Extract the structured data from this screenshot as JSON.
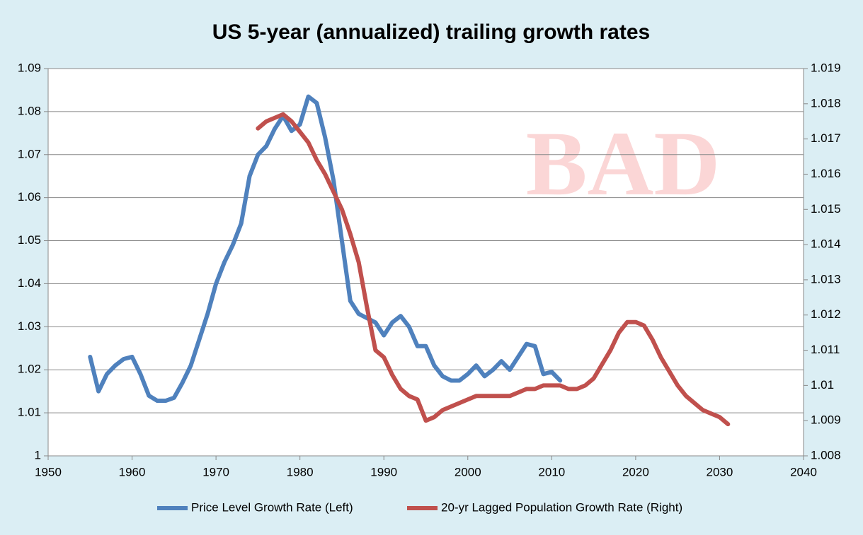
{
  "chart_data": {
    "type": "line",
    "title": "US 5-year (annualized) trailing growth rates",
    "annotation": "BAD",
    "xlim": [
      1950,
      2040
    ],
    "xticks": [
      1950,
      1960,
      1970,
      1980,
      1990,
      2000,
      2010,
      2020,
      2030,
      2040
    ],
    "ylim": [
      1,
      1.09
    ],
    "yticks": [
      1,
      1.01,
      1.02,
      1.03,
      1.04,
      1.05,
      1.06,
      1.07,
      1.08,
      1.09
    ],
    "y2lim": [
      1.008,
      1.019
    ],
    "y2ticks": [
      1.008,
      1.009,
      1.01,
      1.011,
      1.012,
      1.013,
      1.014,
      1.015,
      1.016,
      1.017,
      1.018,
      1.019
    ],
    "grid": true,
    "legend": "bottom",
    "series": [
      {
        "name": "Price Level Growth Rate (Left)",
        "color": "#4f81bd",
        "axis": "y",
        "x": [
          1955,
          1956,
          1957,
          1958,
          1959,
          1960,
          1961,
          1962,
          1963,
          1964,
          1965,
          1966,
          1967,
          1968,
          1969,
          1970,
          1971,
          1972,
          1973,
          1974,
          1975,
          1976,
          1977,
          1978,
          1979,
          1980,
          1981,
          1982,
          1983,
          1984,
          1985,
          1986,
          1987,
          1988,
          1989,
          1990,
          1991,
          1992,
          1993,
          1994,
          1995,
          1996,
          1997,
          1998,
          1999,
          2000,
          2001,
          2002,
          2003,
          2004,
          2005,
          2006,
          2007,
          2008,
          2009,
          2010,
          2011
        ],
        "values": [
          1.023,
          1.015,
          1.019,
          1.021,
          1.0225,
          1.023,
          1.019,
          1.014,
          1.0128,
          1.0128,
          1.0135,
          1.017,
          1.021,
          1.027,
          1.033,
          1.04,
          1.045,
          1.049,
          1.054,
          1.065,
          1.07,
          1.072,
          1.076,
          1.079,
          1.0755,
          1.077,
          1.0835,
          1.082,
          1.074,
          1.064,
          1.05,
          1.036,
          1.033,
          1.032,
          1.031,
          1.028,
          1.031,
          1.0325,
          1.03,
          1.0255,
          1.0255,
          1.021,
          1.0185,
          1.0175,
          1.0175,
          1.019,
          1.021,
          1.0185,
          1.02,
          1.022,
          1.02,
          1.023,
          1.026,
          1.0255,
          1.019,
          1.0195,
          1.0175
        ]
      },
      {
        "name": "20-yr Lagged Population Growth Rate (Right)",
        "color": "#c0504d",
        "axis": "y2",
        "x": [
          1975,
          1976,
          1977,
          1978,
          1979,
          1980,
          1981,
          1982,
          1983,
          1984,
          1985,
          1986,
          1987,
          1988,
          1989,
          1990,
          1991,
          1992,
          1993,
          1994,
          1995,
          1996,
          1997,
          1998,
          1999,
          2000,
          2001,
          2002,
          2003,
          2004,
          2005,
          2006,
          2007,
          2008,
          2009,
          2010,
          2011,
          2012,
          2013,
          2014,
          2015,
          2016,
          2017,
          2018,
          2019,
          2020,
          2021,
          2022,
          2023,
          2024,
          2025,
          2026,
          2027,
          2028,
          2029,
          2030,
          2031
        ],
        "values": [
          1.0173,
          1.0175,
          1.0176,
          1.0177,
          1.0175,
          1.0172,
          1.0169,
          1.0164,
          1.016,
          1.0155,
          1.015,
          1.0143,
          1.0135,
          1.0122,
          1.011,
          1.0108,
          1.0103,
          1.0099,
          1.0097,
          1.0096,
          1.009,
          1.0091,
          1.0093,
          1.0094,
          1.0095,
          1.0096,
          1.0097,
          1.0097,
          1.0097,
          1.0097,
          1.0097,
          1.0098,
          1.0099,
          1.0099,
          1.01,
          1.01,
          1.01,
          1.0099,
          1.0099,
          1.01,
          1.0102,
          1.0106,
          1.011,
          1.0115,
          1.0118,
          1.0118,
          1.0117,
          1.0113,
          1.0108,
          1.0104,
          1.01,
          1.0097,
          1.0095,
          1.0093,
          1.0092,
          1.0091,
          1.0089
        ]
      }
    ]
  }
}
